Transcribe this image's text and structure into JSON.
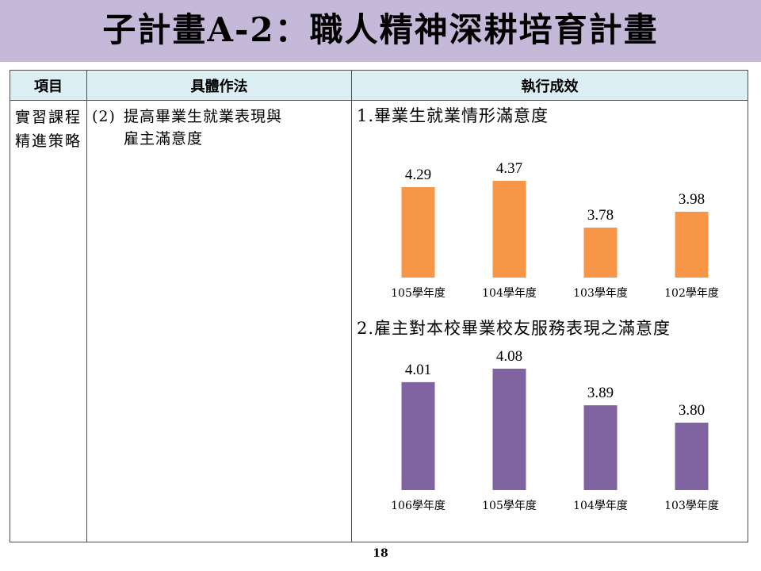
{
  "title": "子計畫A-2：職人精神深耕培育計畫",
  "table": {
    "headers": [
      "項目",
      "具體作法",
      "執行成效"
    ],
    "item": "實習課程精進策略",
    "method_num": "(2)",
    "method_line1": "提高畢業生就業表現與",
    "method_line2": "雇主滿意度"
  },
  "chart_data": [
    {
      "type": "bar",
      "title": "1.畢業生就業情形滿意度",
      "categories": [
        "105學年度",
        "104學年度",
        "103學年度",
        "102學年度"
      ],
      "values": [
        4.29,
        4.37,
        3.78,
        3.98
      ],
      "color": "#f79646"
    },
    {
      "type": "bar",
      "title": "2.雇主對本校畢業校友服務表現之滿意度",
      "categories": [
        "106學年度",
        "105學年度",
        "104學年度",
        "103學年度"
      ],
      "values": [
        4.01,
        4.08,
        3.89,
        3.8
      ],
      "color": "#8064a2"
    }
  ],
  "page_number": "18"
}
